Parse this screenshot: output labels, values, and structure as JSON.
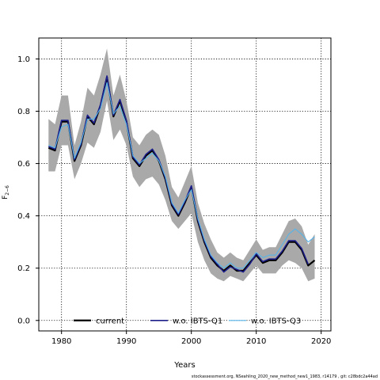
{
  "chart_data": {
    "type": "line",
    "xlabel": "Years",
    "ylabel": "F",
    "ylabel_sub": "2−6",
    "xlim": [
      1976.5,
      2021.5
    ],
    "ylim": [
      -0.04,
      1.08
    ],
    "xticks": [
      1980,
      1990,
      2000,
      2010,
      2020
    ],
    "yticks": [
      0.0,
      0.2,
      0.4,
      0.6,
      0.8,
      1.0
    ],
    "ytick_labels": [
      "0.0",
      "0.2",
      "0.4",
      "0.6",
      "0.8",
      "1.0"
    ],
    "grid": true,
    "legend_position": "bottom",
    "band": {
      "x": [
        1978,
        1979,
        1980,
        1981,
        1982,
        1983,
        1984,
        1985,
        1986,
        1987,
        1988,
        1989,
        1990,
        1991,
        1992,
        1993,
        1994,
        1995,
        1996,
        1997,
        1998,
        1999,
        2000,
        2001,
        2002,
        2003,
        2004,
        2005,
        2006,
        2007,
        2008,
        2009,
        2010,
        2011,
        2012,
        2013,
        2014,
        2015,
        2016,
        2017,
        2018,
        2019
      ],
      "lower": [
        0.57,
        0.57,
        0.67,
        0.67,
        0.54,
        0.6,
        0.68,
        0.66,
        0.72,
        0.84,
        0.69,
        0.73,
        0.67,
        0.55,
        0.51,
        0.54,
        0.55,
        0.52,
        0.46,
        0.38,
        0.35,
        0.38,
        0.41,
        0.3,
        0.23,
        0.18,
        0.16,
        0.15,
        0.17,
        0.16,
        0.15,
        0.18,
        0.21,
        0.18,
        0.18,
        0.18,
        0.21,
        0.23,
        0.22,
        0.2,
        0.15,
        0.16
      ],
      "upper": [
        0.77,
        0.75,
        0.86,
        0.86,
        0.67,
        0.76,
        0.89,
        0.86,
        0.94,
        1.04,
        0.86,
        0.94,
        0.84,
        0.7,
        0.67,
        0.71,
        0.73,
        0.71,
        0.63,
        0.51,
        0.47,
        0.53,
        0.59,
        0.45,
        0.37,
        0.31,
        0.26,
        0.24,
        0.26,
        0.24,
        0.23,
        0.27,
        0.31,
        0.27,
        0.28,
        0.28,
        0.33,
        0.38,
        0.39,
        0.36,
        0.29,
        0.33
      ]
    },
    "series": [
      {
        "name": "current",
        "color": "#000000",
        "x": [
          1978,
          1979,
          1980,
          1981,
          1982,
          1983,
          1984,
          1985,
          1986,
          1987,
          1988,
          1989,
          1990,
          1991,
          1992,
          1993,
          1994,
          1995,
          1996,
          1997,
          1998,
          1999,
          2000,
          2001,
          2002,
          2003,
          2004,
          2005,
          2006,
          2007,
          2008,
          2009,
          2010,
          2011,
          2012,
          2013,
          2014,
          2015,
          2016,
          2017,
          2018,
          2019
        ],
        "values": [
          0.66,
          0.65,
          0.76,
          0.76,
          0.61,
          0.67,
          0.78,
          0.75,
          0.82,
          0.93,
          0.78,
          0.84,
          0.76,
          0.62,
          0.59,
          0.63,
          0.65,
          0.61,
          0.54,
          0.44,
          0.4,
          0.45,
          0.51,
          0.38,
          0.3,
          0.24,
          0.21,
          0.19,
          0.21,
          0.19,
          0.19,
          0.22,
          0.25,
          0.22,
          0.23,
          0.23,
          0.26,
          0.3,
          0.3,
          0.27,
          0.21,
          0.23
        ]
      },
      {
        "name": "w.o. IBTS-Q1",
        "color": "#1c1e8a",
        "x": [
          1978,
          1979,
          1980,
          1981,
          1982,
          1983,
          1984,
          1985,
          1986,
          1987,
          1988,
          1989,
          1990,
          1991,
          1992,
          1993,
          1994,
          1995,
          1996,
          1997,
          1998,
          1999,
          2000,
          2001,
          2002,
          2003,
          2004,
          2005,
          2006,
          2007,
          2008,
          2009,
          2010,
          2011,
          2012,
          2013,
          2014,
          2015,
          2016,
          2017,
          2018
        ],
        "values": [
          0.665,
          0.655,
          0.765,
          0.765,
          0.615,
          0.675,
          0.785,
          0.755,
          0.825,
          0.935,
          0.785,
          0.845,
          0.765,
          0.625,
          0.595,
          0.635,
          0.655,
          0.615,
          0.545,
          0.445,
          0.405,
          0.455,
          0.515,
          0.385,
          0.305,
          0.245,
          0.215,
          0.185,
          0.205,
          0.195,
          0.185,
          0.215,
          0.255,
          0.225,
          0.235,
          0.235,
          0.265,
          0.305,
          0.305,
          0.275,
          0.215
        ]
      },
      {
        "name": "w.o. IBTS-Q3",
        "color": "#56b4e9",
        "x": [
          1978,
          1979,
          1980,
          1981,
          1982,
          1983,
          1984,
          1985,
          1986,
          1987,
          1988,
          1989,
          1990,
          1991,
          1992,
          1993,
          1994,
          1995,
          1996,
          1997,
          1998,
          1999,
          2000,
          2001,
          2002,
          2003,
          2004,
          2005,
          2006,
          2007,
          2008,
          2009,
          2010,
          2011,
          2012,
          2013,
          2014,
          2015,
          2016,
          2017,
          2018,
          2019
        ],
        "values": [
          0.67,
          0.66,
          0.74,
          0.75,
          0.62,
          0.68,
          0.77,
          0.77,
          0.81,
          0.91,
          0.79,
          0.82,
          0.75,
          0.63,
          0.6,
          0.62,
          0.64,
          0.61,
          0.55,
          0.45,
          0.41,
          0.46,
          0.5,
          0.39,
          0.31,
          0.25,
          0.22,
          0.2,
          0.22,
          0.2,
          0.2,
          0.23,
          0.26,
          0.24,
          0.25,
          0.25,
          0.29,
          0.33,
          0.35,
          0.33,
          0.3,
          0.32
        ]
      }
    ]
  },
  "footer": "stockassessment.org,  NSeahIing_2020_new_method_new1_1983,  r14179  ,  git: c28bdc2a44ad"
}
